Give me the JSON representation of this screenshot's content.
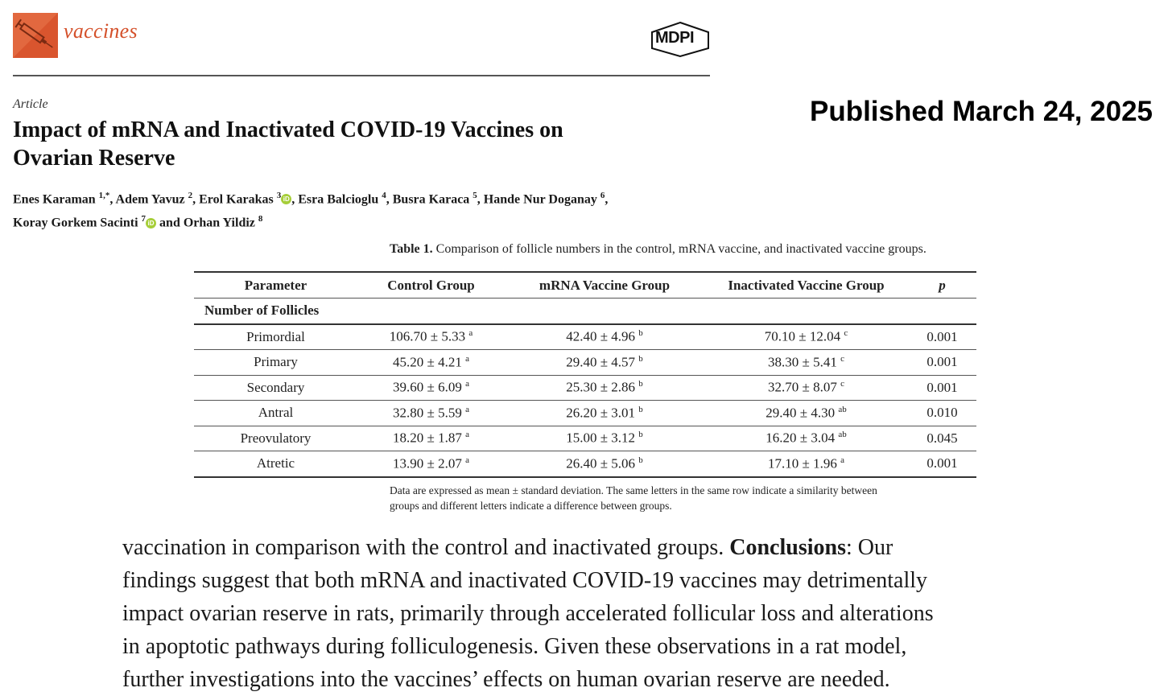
{
  "header": {
    "journal_name": "vaccines",
    "publisher": "MDPI",
    "brand_color": "#e2683f"
  },
  "article": {
    "type": "Article",
    "title_line1": "Impact of mRNA and Inactivated COVID-19 Vaccines on",
    "title_line2": "Ovarian Reserve",
    "published": "Published March 24, 2025",
    "authors": [
      {
        "name": "Enes Karaman",
        "sup": "1,*"
      },
      {
        "name": "Adem Yavuz",
        "sup": "2"
      },
      {
        "name": "Erol Karakas",
        "sup": "3",
        "orcid": true
      },
      {
        "name": "Esra Balcioglu",
        "sup": "4"
      },
      {
        "name": "Busra Karaca",
        "sup": "5"
      },
      {
        "name": "Hande Nur Doganay",
        "sup": "6"
      },
      {
        "name": "Koray Gorkem Sacinti",
        "sup": "7",
        "orcid": true
      },
      {
        "name": "Orhan Yildiz",
        "sup": "8"
      }
    ],
    "author_and": "and"
  },
  "table": {
    "caption_label": "Table 1.",
    "caption_text": "Comparison of follicle numbers in the control, mRNA vaccine, and inactivated vaccine groups.",
    "headers": [
      "Parameter",
      "Control Group",
      "mRNA Vaccine Group",
      "Inactivated Vaccine Group",
      "p"
    ],
    "section_label": "Number of Follicles",
    "rows": [
      {
        "param": "Primordial",
        "control": "106.70 ± 5.33",
        "control_sup": "a",
        "mrna": "42.40 ± 4.96",
        "mrna_sup": "b",
        "inact": "70.10 ± 12.04",
        "inact_sup": "c",
        "p": "0.001"
      },
      {
        "param": "Primary",
        "control": "45.20 ± 4.21",
        "control_sup": "a",
        "mrna": "29.40 ± 4.57",
        "mrna_sup": "b",
        "inact": "38.30 ± 5.41",
        "inact_sup": "c",
        "p": "0.001"
      },
      {
        "param": "Secondary",
        "control": "39.60 ± 6.09",
        "control_sup": "a",
        "mrna": "25.30 ± 2.86",
        "mrna_sup": "b",
        "inact": "32.70 ± 8.07",
        "inact_sup": "c",
        "p": "0.001"
      },
      {
        "param": "Antral",
        "control": "32.80 ± 5.59",
        "control_sup": "a",
        "mrna": "26.20 ± 3.01",
        "mrna_sup": "b",
        "inact": "29.40 ± 4.30",
        "inact_sup": "ab",
        "p": "0.010"
      },
      {
        "param": "Preovulatory",
        "control": "18.20 ± 1.87",
        "control_sup": "a",
        "mrna": "15.00 ± 3.12",
        "mrna_sup": "b",
        "inact": "16.20 ± 3.04",
        "inact_sup": "ab",
        "p": "0.045"
      },
      {
        "param": "Atretic",
        "control": "13.90 ± 2.07",
        "control_sup": "a",
        "mrna": "26.40 ± 5.06",
        "mrna_sup": "b",
        "inact": "17.10 ± 1.96",
        "inact_sup": "a",
        "p": "0.001"
      }
    ],
    "note_line1": "Data are expressed as mean ± standard deviation. The same letters in the same row indicate a similarity between",
    "note_line2": "groups and different letters indicate a difference between groups."
  },
  "abstract": {
    "line1_pre": "vaccination in comparison with the control and inactivated groups.",
    "line1_bold": "Conclusions",
    "line1_post": ": Our",
    "line2": "findings suggest that both mRNA and inactivated COVID-19 vaccines may detrimentally",
    "line3": "impact ovarian reserve in rats, primarily through accelerated follicular loss and alterations",
    "line4": "in apoptotic pathways during folliculogenesis. Given these observations in a rat model,",
    "line5": "further investigations into the vaccines’ effects on human ovarian reserve are needed."
  }
}
